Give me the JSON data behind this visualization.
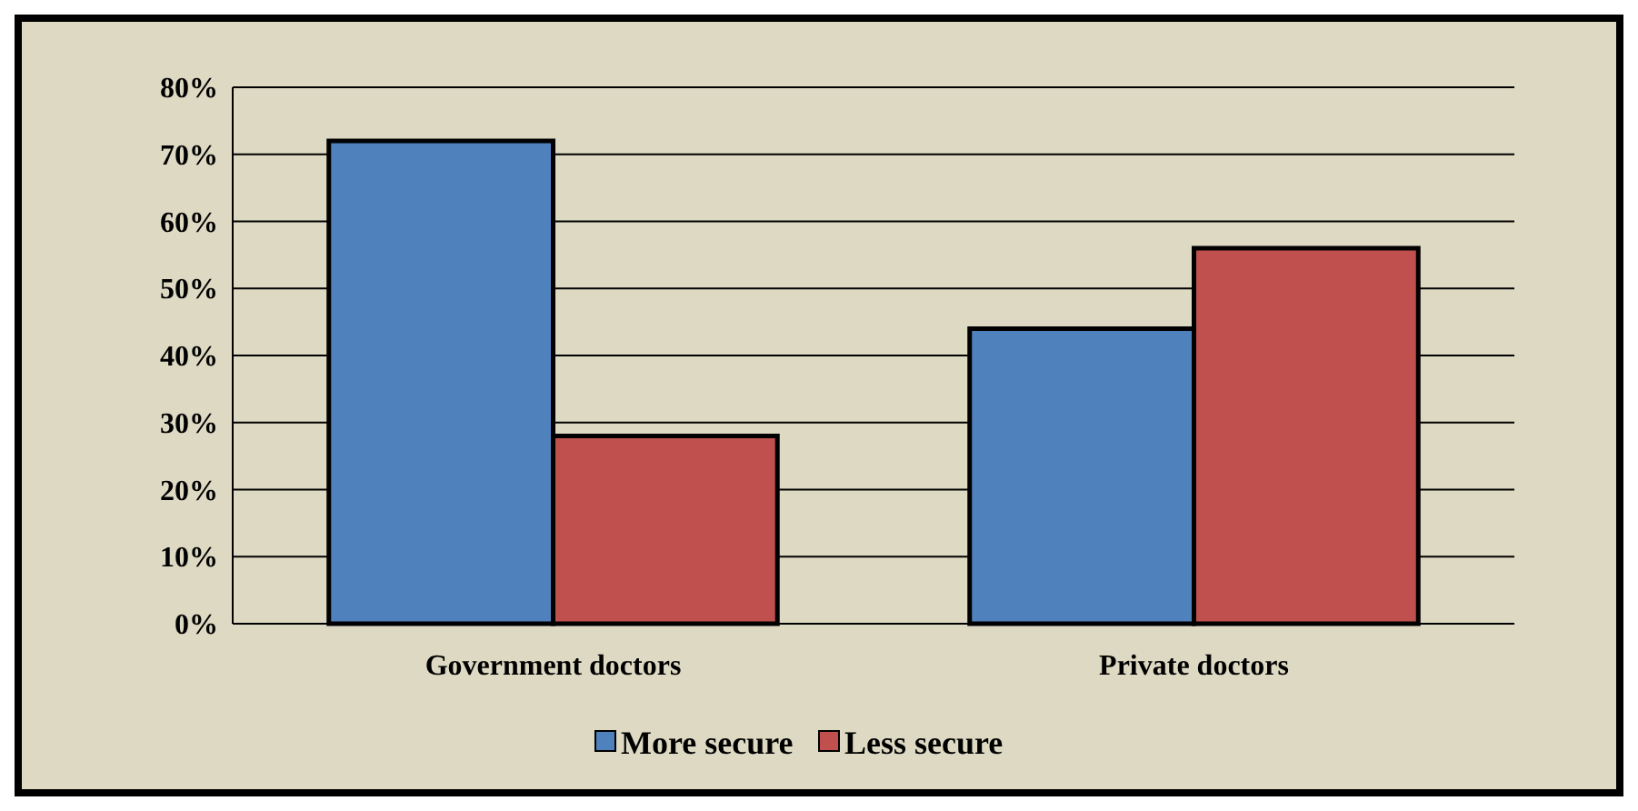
{
  "chart_data": {
    "type": "bar",
    "categories": [
      "Government doctors",
      "Private doctors"
    ],
    "series": [
      {
        "name": "More secure",
        "color": "#4f81bd",
        "values": [
          72,
          44
        ]
      },
      {
        "name": "Less secure",
        "color": "#c0504d",
        "values": [
          28,
          56
        ]
      }
    ],
    "ylim": [
      0,
      80
    ],
    "yticks": [
      {
        "value": 0,
        "label": "0%"
      },
      {
        "value": 10,
        "label": "10%"
      },
      {
        "value": 20,
        "label": "20%"
      },
      {
        "value": 30,
        "label": "30%"
      },
      {
        "value": 40,
        "label": "40%"
      },
      {
        "value": 50,
        "label": "50%"
      },
      {
        "value": 60,
        "label": "60%"
      },
      {
        "value": 70,
        "label": "70%"
      },
      {
        "value": 80,
        "label": "80%"
      }
    ],
    "grid": "y",
    "legend": "bottom"
  }
}
